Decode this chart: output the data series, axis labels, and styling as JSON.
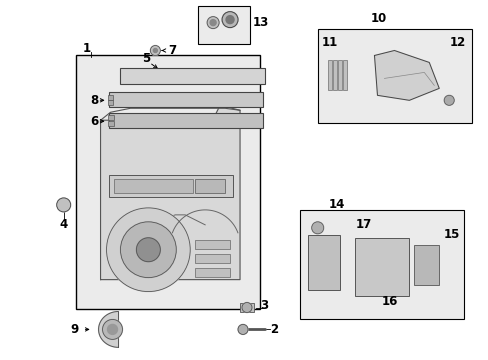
{
  "bg_color": "#ffffff",
  "fig_width": 4.89,
  "fig_height": 3.6,
  "dpi": 100,
  "gray_light": "#e8e8e8",
  "gray_mid": "#cccccc",
  "gray_dark": "#888888",
  "black": "#000000",
  "box_bg": "#ebebeb",
  "label_fs": 8.5
}
